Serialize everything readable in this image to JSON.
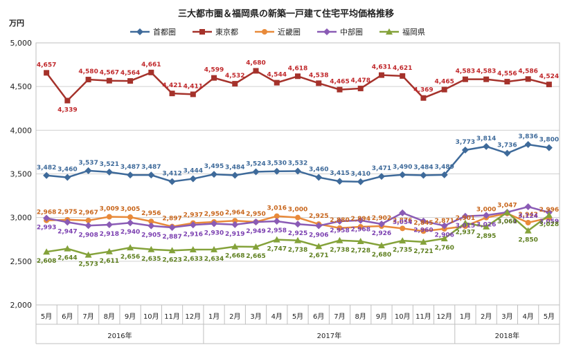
{
  "chart_data": {
    "type": "line",
    "title": "三大都市圏＆福岡県の新築一戸建て住宅平均価格推移",
    "ylabel": "万円",
    "xlabel": "",
    "ylim": [
      2000,
      5000
    ],
    "yticks": [
      "2,000",
      "2,500",
      "3,000",
      "3,500",
      "4,000",
      "4,500",
      "5,000"
    ],
    "grid": "horizontal",
    "legend_position": "top",
    "categories": [
      "5月",
      "6月",
      "7月",
      "8月",
      "9月",
      "10月",
      "11月",
      "12月",
      "1月",
      "2月",
      "3月",
      "4月",
      "5月",
      "6月",
      "7月",
      "8月",
      "9月",
      "10月",
      "11月",
      "12月",
      "1月",
      "2月",
      "3月",
      "4月",
      "5月"
    ],
    "years": [
      {
        "label": "2016年",
        "start": 0,
        "end": 7
      },
      {
        "label": "2017年",
        "start": 8,
        "end": 19
      },
      {
        "label": "2018年",
        "start": 20,
        "end": 24
      }
    ],
    "series": [
      {
        "name": "首都圏",
        "color": "#3E6A9A",
        "marker": "diamond",
        "values": [
          3482,
          3460,
          3537,
          3521,
          3487,
          3487,
          3412,
          3444,
          3495,
          3484,
          3524,
          3530,
          3532,
          3460,
          3415,
          3410,
          3471,
          3490,
          3484,
          3489,
          3773,
          3814,
          3736,
          3836,
          3800
        ]
      },
      {
        "name": "東京都",
        "color": "#A5322B",
        "label_color": "#C0282B",
        "marker": "square",
        "values": [
          4657,
          4339,
          4580,
          4567,
          4564,
          4661,
          4421,
          4411,
          4599,
          4532,
          4680,
          4544,
          4618,
          4538,
          4465,
          4478,
          4631,
          4621,
          4369,
          4465,
          4583,
          4583,
          4556,
          4586,
          4524
        ]
      },
      {
        "name": "近畿圏",
        "color": "#E88A3A",
        "label_color": "#C8661C",
        "marker": "circle",
        "values": [
          2968,
          2975,
          2967,
          3009,
          3005,
          2956,
          2897,
          2937,
          2950,
          2964,
          2950,
          3016,
          3000,
          2925,
          2880,
          2894,
          2902,
          2876,
          2845,
          2871,
          2901,
          3000,
          3047,
          2942,
          2996
        ]
      },
      {
        "name": "中部圏",
        "color": "#8A5BB5",
        "label_color": "#7B3FB0",
        "marker": "diamond",
        "values": [
          2993,
          2947,
          2908,
          2918,
          2940,
          2905,
          2887,
          2916,
          2930,
          2919,
          2949,
          2958,
          2925,
          2906,
          2958,
          2968,
          2926,
          3054,
          2960,
          2906,
          3015,
          3026,
          3061,
          3124,
          3059
        ]
      },
      {
        "name": "福岡県",
        "color": "#84A23A",
        "label_color": "#5E7F1F",
        "marker": "triangle",
        "values": [
          2608,
          2644,
          2573,
          2611,
          2656,
          2635,
          2623,
          2633,
          2634,
          2668,
          2665,
          2747,
          2738,
          2671,
          2738,
          2728,
          2680,
          2735,
          2721,
          2760,
          2937,
          2895,
          3060,
          2850,
          3028
        ]
      }
    ]
  }
}
